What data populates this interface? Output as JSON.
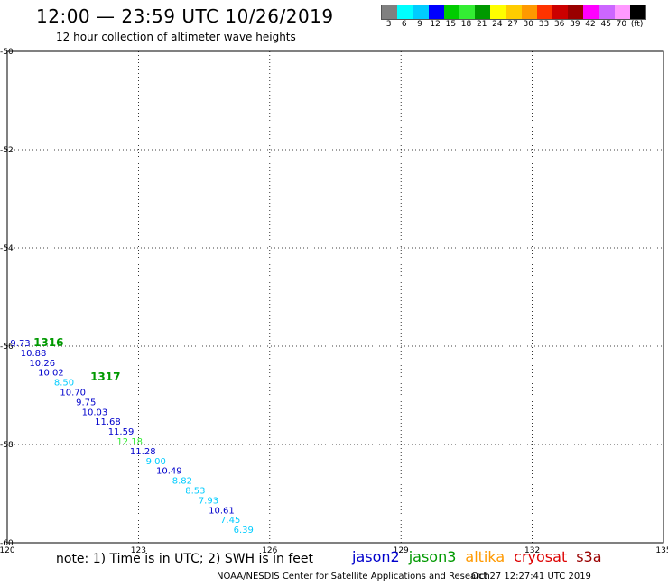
{
  "title": "12:00 — 23:59 UTC 10/26/2019",
  "subtitle": "12 hour collection of altimeter wave heights",
  "legend": {
    "colors": [
      "#808080",
      "#00ffff",
      "#00ccff",
      "#0000ff",
      "#00cc00",
      "#33ee33",
      "#009900",
      "#ffff00",
      "#ffcc00",
      "#ff9900",
      "#ff3300",
      "#cc0000",
      "#990000",
      "#ff00ff",
      "#cc66ff",
      "#ff99ff",
      "#000000"
    ],
    "labels": [
      "3",
      "6",
      "9",
      "12",
      "15",
      "18",
      "21",
      "24",
      "27",
      "30",
      "33",
      "36",
      "39",
      "42",
      "45",
      "70",
      "(ft)"
    ]
  },
  "footer": {
    "note": "note:  1) Time is in UTC;  2) SWH is in feet",
    "satellites": [
      {
        "name": "jason2",
        "color": "#0000cc"
      },
      {
        "name": "jason3",
        "color": "#009900"
      },
      {
        "name": "altika",
        "color": "#ff9900"
      },
      {
        "name": "cryosat",
        "color": "#dd0000"
      },
      {
        "name": "s3a",
        "color": "#990000"
      }
    ],
    "credit": "NOAA/NESDIS Center for Satellite Applications and Research",
    "timestamp": "Oct 27 12:27:41 UTC 2019"
  },
  "chart_data": {
    "type": "scatter",
    "title": "12:00 — 23:59 UTC 10/26/2019",
    "xlabel": "",
    "ylabel": "",
    "xlim": [
      120,
      135
    ],
    "ylim": [
      -60,
      -50
    ],
    "x_ticks": [
      "120",
      "123",
      "126",
      "129",
      "132",
      "135"
    ],
    "y_ticks": [
      "-50",
      "-52",
      "-54",
      "-56",
      "-58",
      "-60"
    ],
    "grid": true,
    "tracks": [
      {
        "name": "track-a",
        "time_labels": [
          {
            "text": "1316",
            "x": 120.6,
            "y": -56.0,
            "color": "#009900"
          },
          {
            "text": "1317",
            "x": 121.9,
            "y": -56.7,
            "color": "#009900"
          }
        ],
        "points": [
          {
            "x": 120.3,
            "y": -56.0,
            "v": "9.73",
            "color": "#0000cc"
          },
          {
            "x": 120.6,
            "y": -56.2,
            "v": "10.88",
            "color": "#0000cc"
          },
          {
            "x": 120.8,
            "y": -56.4,
            "v": "10.26",
            "color": "#0000cc"
          },
          {
            "x": 121.0,
            "y": -56.6,
            "v": "10.02",
            "color": "#0000cc"
          },
          {
            "x": 121.3,
            "y": -56.8,
            "v": "8.50",
            "color": "#00ccff"
          },
          {
            "x": 121.5,
            "y": -57.0,
            "v": "10.70",
            "color": "#0000cc"
          },
          {
            "x": 121.8,
            "y": -57.2,
            "v": "9.75",
            "color": "#0000cc"
          },
          {
            "x": 122.0,
            "y": -57.4,
            "v": "10.03",
            "color": "#0000cc"
          },
          {
            "x": 122.3,
            "y": -57.6,
            "v": "11.68",
            "color": "#0000cc"
          },
          {
            "x": 122.6,
            "y": -57.8,
            "v": "11.59",
            "color": "#0000cc"
          },
          {
            "x": 122.8,
            "y": -58.0,
            "v": "12.18",
            "color": "#33ee33"
          },
          {
            "x": 123.1,
            "y": -58.2,
            "v": "11.28",
            "color": "#0000cc"
          },
          {
            "x": 123.4,
            "y": -58.4,
            "v": "9.00",
            "color": "#00ccff"
          },
          {
            "x": 123.7,
            "y": -58.6,
            "v": "10.49",
            "color": "#0000cc"
          },
          {
            "x": 124.0,
            "y": -58.8,
            "v": "8.82",
            "color": "#00ccff"
          },
          {
            "x": 124.3,
            "y": -59.0,
            "v": "8.53",
            "color": "#00ccff"
          },
          {
            "x": 124.6,
            "y": -59.2,
            "v": "7.93",
            "color": "#00ccff"
          },
          {
            "x": 124.9,
            "y": -59.4,
            "v": "10.61",
            "color": "#0000cc"
          },
          {
            "x": 125.1,
            "y": -59.6,
            "v": "7.45",
            "color": "#00ccff"
          },
          {
            "x": 125.4,
            "y": -59.8,
            "v": "6.39",
            "color": "#00ccff"
          }
        ]
      }
    ]
  }
}
